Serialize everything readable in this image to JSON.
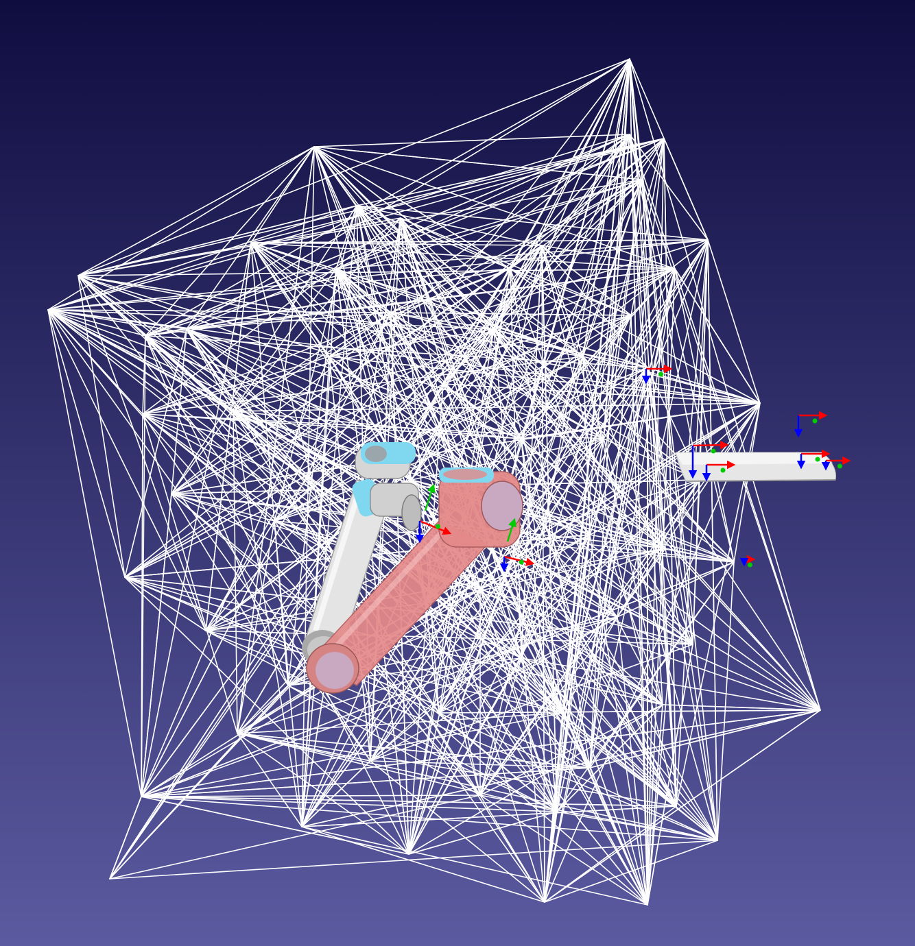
{
  "viewer": {
    "colors": {
      "background_top": "#0f0d40",
      "background_bottom": "#5b5aa0",
      "roadmap_edges": "#ffffff",
      "robot_start_body": "#e6e6e6",
      "robot_start_joint_cap": "#7fd8f0",
      "robot_goal_body": "#e58a8a",
      "frame_x_axis": "#ff0000",
      "frame_y_axis": "#00cc00",
      "frame_z_axis": "#0000ff",
      "obstacle": "#e6e6e6"
    },
    "objects": {
      "roadmap": "roadmap-graph",
      "start_robot": "ur-arm-start-configuration",
      "goal_robot": "ur-arm-goal-configuration",
      "obstacle": "cylinder-obstacle",
      "frames": "coordinate-frame-icon"
    }
  }
}
